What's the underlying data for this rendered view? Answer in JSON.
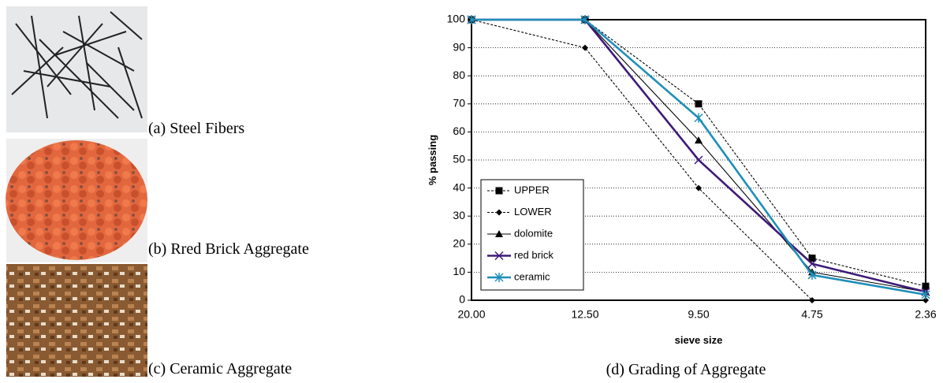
{
  "panels": [
    {
      "caption": "(a) Steel Fibers"
    },
    {
      "caption": "(b) Rred Brick Aggregate"
    },
    {
      "caption": "(c) Ceramic Aggregate"
    }
  ],
  "chart_data": {
    "type": "line",
    "caption": "(d) Grading of Aggregate",
    "x_label": "sieve size",
    "y_label": "% passing",
    "categories": [
      "20.00",
      "12.50",
      "9.50",
      "4.75",
      "2.36"
    ],
    "ylim": [
      0,
      100
    ],
    "yticks": [
      0,
      10,
      20,
      30,
      40,
      50,
      60,
      70,
      80,
      90,
      100
    ],
    "grid": true,
    "legend": "lower left",
    "series": [
      {
        "name": "UPPER",
        "color": "#000000",
        "line_style": "dashed",
        "line_weight": "thin",
        "marker": "square",
        "values": [
          100,
          100,
          70,
          15,
          5
        ]
      },
      {
        "name": "LOWER",
        "color": "#000000",
        "line_style": "dashed",
        "line_weight": "thin",
        "marker": "diamond",
        "values": [
          100,
          90,
          40,
          0,
          0
        ]
      },
      {
        "name": "dolomite",
        "color": "#000000",
        "line_style": "solid",
        "line_weight": "thin",
        "marker": "triangle",
        "values": [
          100,
          100,
          57,
          10,
          3
        ]
      },
      {
        "name": "red brick",
        "color": "#3d1a78",
        "line_style": "solid",
        "line_weight": "heavy",
        "marker": "x",
        "values": [
          100,
          100,
          50,
          13,
          3
        ]
      },
      {
        "name": "ceramic",
        "color": "#1e8fb8",
        "line_style": "solid",
        "line_weight": "heavy",
        "marker": "asterisk",
        "values": [
          100,
          100,
          65,
          9,
          2
        ]
      }
    ]
  }
}
